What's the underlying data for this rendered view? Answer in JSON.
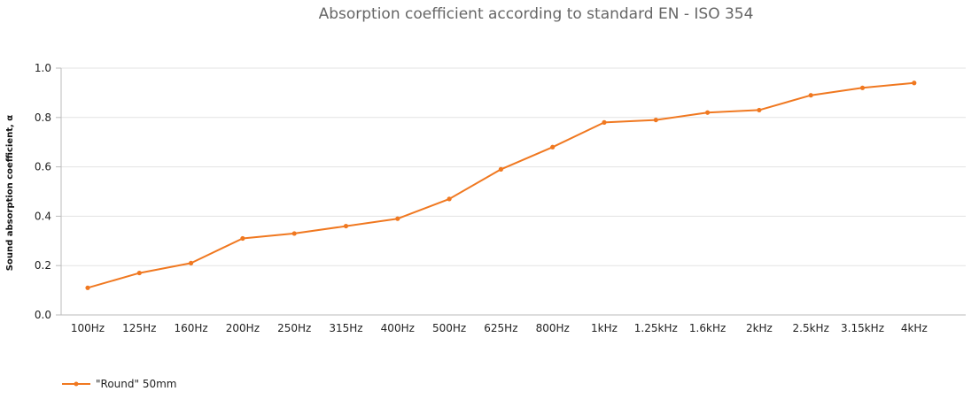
{
  "chart_data": {
    "type": "line",
    "title": "Absorption coefficient according to standard EN - ISO 354",
    "xlabel": "",
    "ylabel": "Sound absorption coefficient, α",
    "categories": [
      "100Hz",
      "125Hz",
      "160Hz",
      "200Hz",
      "250Hz",
      "315Hz",
      "400Hz",
      "500Hz",
      "625Hz",
      "800Hz",
      "1kHz",
      "1.25kHz",
      "1.6kHz",
      "2kHz",
      "2.5kHz",
      "3.15kHz",
      "4kHz"
    ],
    "y_ticks": [
      "0.0",
      "0.2",
      "0.4",
      "0.6",
      "0.8",
      "1.0"
    ],
    "ylim": [
      0,
      1.0
    ],
    "grid": true,
    "legend_position": "bottom-left",
    "series": [
      {
        "name": "\"Round\" 50mm",
        "color": "#f07820",
        "values": [
          0.11,
          0.17,
          0.21,
          0.31,
          0.33,
          0.36,
          0.39,
          0.47,
          0.59,
          0.68,
          0.78,
          0.79,
          0.82,
          0.83,
          0.89,
          0.92,
          0.94
        ]
      }
    ]
  }
}
